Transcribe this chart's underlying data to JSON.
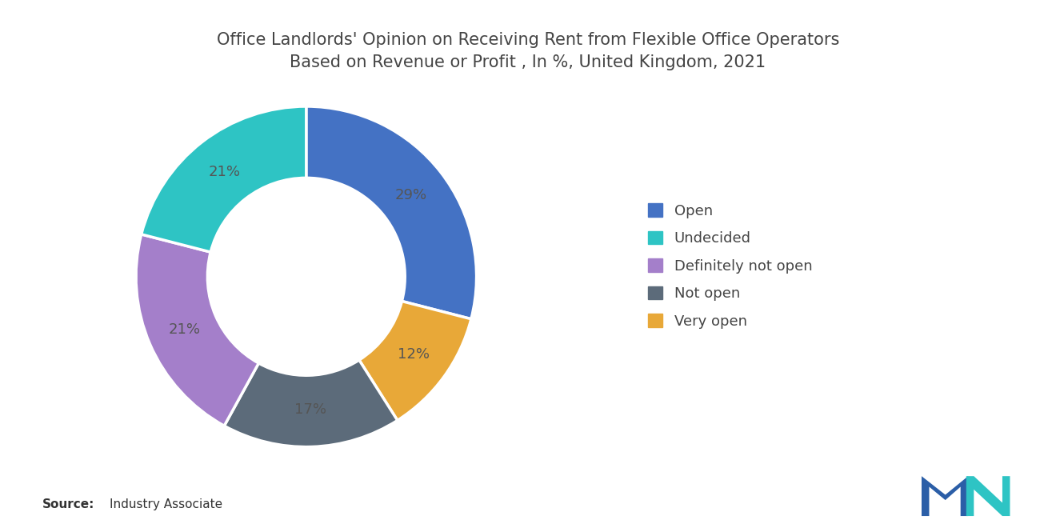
{
  "title": "Office Landlords' Opinion on Receiving Rent from Flexible Office Operators\nBased on Revenue or Profit , In %, United Kingdom, 2021",
  "labels": [
    "Open",
    "Undecided",
    "Definitely not open",
    "Not open",
    "Very open"
  ],
  "values": [
    29,
    21,
    21,
    17,
    12
  ],
  "pie_order_values": [
    29,
    12,
    17,
    21,
    21
  ],
  "pie_order_colors": [
    "#4472C4",
    "#E8A838",
    "#5C6B7A",
    "#A47FCA",
    "#2EC4C4"
  ],
  "pie_order_percentages": [
    "29%",
    "12%",
    "17%",
    "21%",
    "21%"
  ],
  "colors": [
    "#4472C4",
    "#2EC4C4",
    "#A47FCA",
    "#5C6B7A",
    "#E8A838"
  ],
  "source_bold": "Source:",
  "source_normal": " Industry Associate",
  "background_color": "#FFFFFF",
  "title_fontsize": 15,
  "label_fontsize": 13,
  "legend_fontsize": 13,
  "label_color": "#555555"
}
